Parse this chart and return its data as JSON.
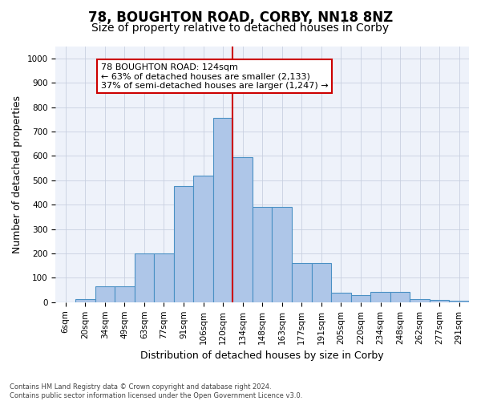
{
  "title": "78, BOUGHTON ROAD, CORBY, NN18 8NZ",
  "subtitle": "Size of property relative to detached houses in Corby",
  "xlabel": "Distribution of detached houses by size in Corby",
  "ylabel": "Number of detached properties",
  "categories": [
    "6sqm",
    "20sqm",
    "34sqm",
    "49sqm",
    "63sqm",
    "77sqm",
    "91sqm",
    "106sqm",
    "120sqm",
    "134sqm",
    "148sqm",
    "163sqm",
    "177sqm",
    "191sqm",
    "205sqm",
    "220sqm",
    "234sqm",
    "248sqm",
    "262sqm",
    "277sqm",
    "291sqm"
  ],
  "values": [
    0,
    13,
    65,
    65,
    200,
    200,
    475,
    520,
    755,
    595,
    390,
    390,
    160,
    160,
    40,
    28,
    42,
    42,
    12,
    8,
    5
  ],
  "bar_color": "#aec6e8",
  "bar_edge_color": "#4a90c4",
  "vline_color": "#cc0000",
  "annotation_line1": "78 BOUGHTON ROAD: 124sqm",
  "annotation_line2": "← 63% of detached houses are smaller (2,133)",
  "annotation_line3": "37% of semi-detached houses are larger (1,247) →",
  "annotation_box_color": "#ffffff",
  "annotation_box_edge": "#cc0000",
  "ylim": [
    0,
    1050
  ],
  "yticks": [
    0,
    100,
    200,
    300,
    400,
    500,
    600,
    700,
    800,
    900,
    1000
  ],
  "background_color": "#eef2fa",
  "footnote": "Contains HM Land Registry data © Crown copyright and database right 2024.\nContains public sector information licensed under the Open Government Licence v3.0.",
  "title_fontsize": 12,
  "subtitle_fontsize": 10,
  "xlabel_fontsize": 9,
  "ylabel_fontsize": 9,
  "tick_fontsize": 7.5,
  "annot_fontsize": 8
}
